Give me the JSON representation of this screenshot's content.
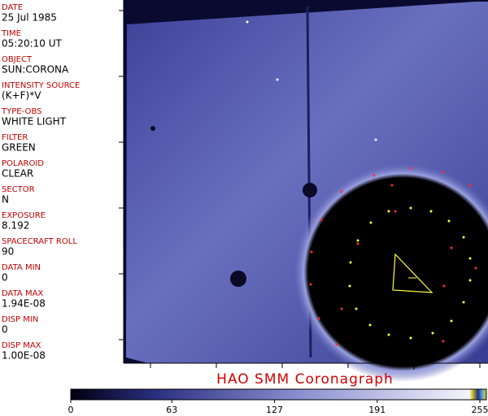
{
  "fields": [
    {
      "label": "DATE",
      "value": "25 Jul 1985"
    },
    {
      "label": "TIME",
      "value": "05:20:10 UT"
    },
    {
      "label": "OBJECT",
      "value": "SUN:CORONA"
    },
    {
      "label": "INTENSITY SOURCE",
      "value": "(K+F)*V"
    },
    {
      "label": "TYPE-OBS",
      "value": "WHITE LIGHT"
    },
    {
      "label": "FILTER",
      "value": "GREEN"
    },
    {
      "label": "POLAROID",
      "value": "CLEAR"
    },
    {
      "label": "SECTOR",
      "value": "N"
    },
    {
      "label": "EXPOSURE",
      "value": "8.192"
    },
    {
      "label": "SPACECRAFT ROLL",
      "value": "90"
    },
    {
      "label": "DATA MIN",
      "value": "0"
    },
    {
      "label": "DATA MAX",
      "value": "1.94E-08"
    },
    {
      "label": "DISP MIN",
      "value": "0"
    },
    {
      "label": "DISP MAX",
      "value": "1.00E-08"
    }
  ],
  "title": "HAO  SMM  Coronagraph",
  "colorbar": {
    "range": [
      0,
      255
    ],
    "ticks": [
      0,
      63,
      127,
      191,
      255
    ]
  }
}
